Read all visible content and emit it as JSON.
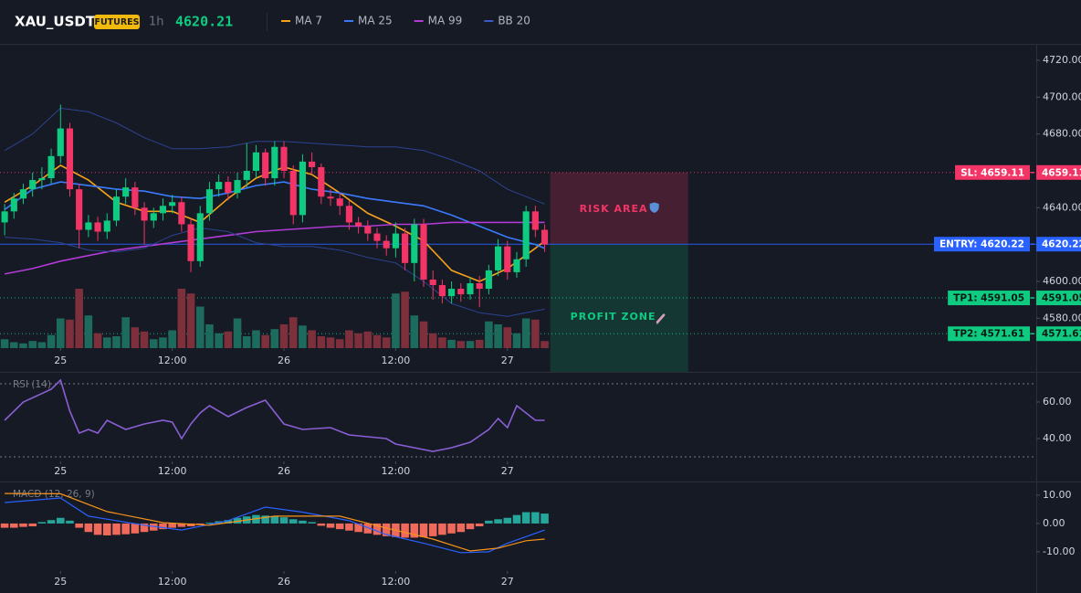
{
  "header": {
    "symbol": "XAU_USDT",
    "badge": "FUTURES",
    "interval": "1h",
    "price": 4620.21
  },
  "chart_data": [
    {
      "type": "candlestick",
      "open": [
        4632,
        4638,
        4645,
        4650,
        4655,
        4656,
        4668,
        4683,
        4650,
        4628,
        4632,
        4627,
        4633,
        4646,
        4651,
        4640,
        4633,
        4637,
        4641,
        4643,
        4631,
        4611,
        4637,
        4650,
        4654,
        4648,
        4655,
        4660,
        4670,
        4656,
        4673,
        4660,
        4636,
        4665,
        4662,
        4646,
        4645,
        4641,
        4632,
        4630,
        4626,
        4622,
        4618,
        4626,
        4610,
        4631,
        4601,
        4598,
        4592,
        4596,
        4593,
        4599,
        4596,
        4606,
        4619,
        4605,
        4612,
        4638,
        4628
      ],
      "high": [
        4642,
        4648,
        4653,
        4659,
        4662,
        4672,
        4696,
        4686,
        4653,
        4636,
        4635,
        4637,
        4650,
        4656,
        4654,
        4643,
        4640,
        4645,
        4647,
        4646,
        4634,
        4641,
        4654,
        4658,
        4657,
        4659,
        4675,
        4674,
        4672,
        4676,
        4676,
        4663,
        4669,
        4670,
        4664,
        4650,
        4648,
        4644,
        4635,
        4633,
        4629,
        4625,
        4632,
        4629,
        4634,
        4634,
        4606,
        4601,
        4600,
        4599,
        4602,
        4603,
        4609,
        4623,
        4622,
        4616,
        4641,
        4641,
        4631
      ],
      "low": [
        4625,
        4634,
        4642,
        4646,
        4650,
        4653,
        4664,
        4646,
        4618,
        4624,
        4622,
        4623,
        4630,
        4642,
        4636,
        4620,
        4629,
        4633,
        4637,
        4627,
        4605,
        4608,
        4633,
        4646,
        4644,
        4645,
        4651,
        4656,
        4652,
        4652,
        4656,
        4631,
        4632,
        4658,
        4642,
        4641,
        4636,
        4628,
        4626,
        4622,
        4618,
        4614,
        4613,
        4606,
        4600,
        4597,
        4590,
        4588,
        4588,
        4589,
        4590,
        4586,
        4593,
        4603,
        4601,
        4602,
        4608,
        4624,
        4616
      ],
      "close": [
        4638,
        4645,
        4650,
        4655,
        4656,
        4668,
        4683,
        4650,
        4628,
        4632,
        4627,
        4633,
        4646,
        4651,
        4640,
        4633,
        4637,
        4641,
        4643,
        4631,
        4611,
        4637,
        4650,
        4654,
        4648,
        4655,
        4660,
        4670,
        4656,
        4673,
        4660,
        4636,
        4665,
        4662,
        4646,
        4645,
        4641,
        4632,
        4630,
        4626,
        4622,
        4618,
        4626,
        4610,
        4631,
        4601,
        4598,
        4592,
        4596,
        4593,
        4599,
        4596,
        4606,
        4619,
        4605,
        4612,
        4638,
        4628,
        4620
      ],
      "volume": [
        15,
        10,
        8,
        12,
        10,
        22,
        50,
        48,
        100,
        55,
        25,
        18,
        20,
        52,
        35,
        28,
        15,
        18,
        30,
        100,
        92,
        70,
        40,
        25,
        28,
        50,
        20,
        30,
        22,
        32,
        40,
        52,
        38,
        30,
        20,
        18,
        15,
        30,
        25,
        28,
        22,
        18,
        92,
        95,
        55,
        45,
        25,
        18,
        14,
        12,
        12,
        14,
        45,
        40,
        35,
        25,
        50,
        48,
        12
      ],
      "up_color": "#0ecb81",
      "down_color": "#f23566",
      "volume_up_color": "#1d6b5d",
      "volume_down_color": "#7e2f3c",
      "series": [
        {
          "name": "MA 7",
          "color": "#f7a21b",
          "x": [
            0,
            3,
            6,
            9,
            12,
            15,
            18,
            21,
            24,
            27,
            30,
            33,
            36,
            39,
            42,
            45,
            48,
            51,
            54,
            57,
            58
          ],
          "values": [
            4643,
            4652,
            4663,
            4655,
            4643,
            4638,
            4638,
            4632,
            4645,
            4656,
            4662,
            4658,
            4648,
            4637,
            4630,
            4622,
            4606,
            4600,
            4607,
            4618,
            4622
          ]
        },
        {
          "name": "MA 25",
          "color": "#3a7bfd",
          "x": [
            0,
            3,
            6,
            9,
            12,
            15,
            18,
            21,
            24,
            27,
            30,
            33,
            36,
            39,
            42,
            45,
            48,
            51,
            54,
            57,
            58
          ],
          "values": [
            4639,
            4650,
            4654,
            4652,
            4650,
            4649,
            4646,
            4645,
            4648,
            4652,
            4654,
            4650,
            4648,
            4645,
            4643,
            4641,
            4636,
            4630,
            4624,
            4620,
            4618
          ]
        },
        {
          "name": "MA 99",
          "color": "#b23ad6",
          "x": [
            0,
            3,
            6,
            9,
            12,
            15,
            18,
            21,
            24,
            27,
            30,
            33,
            36,
            39,
            42,
            45,
            48,
            51,
            54,
            57,
            58
          ],
          "values": [
            4604,
            4607,
            4611,
            4614,
            4617,
            4619,
            4621,
            4623,
            4625,
            4627,
            4628,
            4629,
            4630,
            4630,
            4631,
            4631,
            4632,
            4632,
            4632,
            4632,
            4632
          ]
        },
        {
          "name": "BB 20",
          "color": "#2c4390",
          "x": [
            0,
            3,
            6,
            9,
            12,
            15,
            18,
            21,
            24,
            27,
            30,
            33,
            36,
            39,
            42,
            45,
            48,
            51,
            54,
            57,
            58
          ],
          "values": [
            4671,
            4680,
            4694,
            4692,
            4686,
            4678,
            4672,
            4672,
            4673,
            4676,
            4676,
            4675,
            4674,
            4673,
            4673,
            4671,
            4666,
            4660,
            4650,
            4644,
            4642
          ],
          "lower": [
            4624,
            4623,
            4621,
            4617,
            4616,
            4618,
            4625,
            4629,
            4627,
            4621,
            4619,
            4619,
            4617,
            4613,
            4610,
            4600,
            4588,
            4583,
            4581,
            4584,
            4585
          ]
        }
      ],
      "levels": [
        {
          "label": "SL: 4659.11",
          "value": 4659.11,
          "color": "#f23566",
          "style": "dotted"
        },
        {
          "label": "ENTRY: 4620.22",
          "value": 4620.22,
          "color": "#2962ff",
          "style": "solid"
        },
        {
          "label": "TP1: 4591.05",
          "value": 4591.05,
          "color": "#0ecb81",
          "style": "dotted"
        },
        {
          "label": "TP2: 4571.61",
          "value": 4571.61,
          "color": "#0ecb81",
          "style": "dotted"
        }
      ],
      "zones": [
        {
          "label": "RISK AREA",
          "color": "#f23566"
        },
        {
          "label": "PROFIT ZONE",
          "color": "#0ecb81"
        }
      ],
      "xlim": [
        -0.5,
        110.8
      ],
      "xticks": [
        {
          "value": 6,
          "label": "25"
        },
        {
          "value": 18,
          "label": "12:00"
        },
        {
          "value": 30,
          "label": "26"
        },
        {
          "value": 42,
          "label": "12:00"
        },
        {
          "value": 54,
          "label": "27"
        }
      ],
      "ylim": [
        4563.8,
        4728.9
      ],
      "yticks": [
        {
          "value": 4720,
          "label": "4720.00"
        },
        {
          "value": 4700,
          "label": "4700.00"
        },
        {
          "value": 4680,
          "label": "4680.00"
        },
        {
          "value": 4640,
          "label": "4640.00"
        },
        {
          "value": 4600,
          "label": "4600.00"
        },
        {
          "value": 4580,
          "label": "4580.00"
        }
      ]
    },
    {
      "type": "line",
      "title": "RSI (14)",
      "series": [
        {
          "color": "#8a5fd3",
          "x": [
            0,
            2,
            5,
            6,
            7,
            8,
            9,
            10,
            11,
            13,
            15,
            17,
            18,
            19,
            20,
            21,
            22,
            24,
            26,
            28,
            30,
            32,
            35,
            37,
            39,
            41,
            42,
            44,
            46,
            48,
            50,
            52,
            53,
            54,
            55,
            57,
            58
          ],
          "values": [
            50,
            60,
            67,
            72,
            55,
            43,
            45,
            43,
            50,
            45,
            48,
            50,
            49,
            40,
            48,
            54,
            58,
            52,
            57,
            61,
            48,
            45,
            46,
            42,
            41,
            40,
            37,
            35,
            33,
            35,
            38,
            45,
            51,
            46,
            58,
            50,
            50
          ]
        }
      ],
      "levels": [
        70,
        30
      ],
      "xlim": [
        -0.5,
        110.8
      ],
      "xticks": [
        {
          "value": 6,
          "label": "25"
        },
        {
          "value": 18,
          "label": "12:00"
        },
        {
          "value": 30,
          "label": "26"
        },
        {
          "value": 42,
          "label": "12:00"
        },
        {
          "value": 54,
          "label": "27"
        }
      ],
      "ylim": [
        27.5,
        76
      ],
      "yticks": [
        {
          "value": 60,
          "label": "60.00"
        },
        {
          "value": 40,
          "label": "40.00"
        }
      ]
    },
    {
      "type": "macd",
      "title": "MACD (12, 26, 9)",
      "histogram": [
        -1.5,
        -1.5,
        -1.2,
        -1,
        0.5,
        1.2,
        2,
        1,
        -1.5,
        -3,
        -4,
        -4.2,
        -4,
        -3.8,
        -3.5,
        -3,
        -2.5,
        -2,
        -1.5,
        -1.2,
        -1,
        -0.5,
        0.3,
        0.8,
        1.2,
        2,
        2.5,
        3,
        2.8,
        2.5,
        2.2,
        1.5,
        1,
        0.5,
        -0.8,
        -1.5,
        -2,
        -2.5,
        -3,
        -3.5,
        -4,
        -4.5,
        -4.8,
        -5,
        -5,
        -4.8,
        -4.5,
        -4,
        -3.5,
        -3,
        -2,
        -1,
        1,
        1.5,
        2,
        3,
        4,
        4,
        3.5
      ],
      "up_color": "#26a69a",
      "down_color": "#ef6a5a",
      "series": [
        {
          "color": "#2962ff",
          "x": [
            0,
            6,
            9,
            15,
            19,
            24,
            28,
            32,
            37,
            41,
            45,
            49,
            52,
            54,
            58
          ],
          "values": [
            7.4,
            9,
            2.6,
            -0.6,
            -2.3,
            1,
            5.8,
            4,
            1,
            -3.9,
            -7,
            -10.3,
            -10,
            -7,
            -2.3
          ]
        },
        {
          "color": "#f7931a",
          "x": [
            0,
            6,
            11,
            17,
            22,
            29,
            36,
            41,
            46,
            50,
            53,
            56,
            58
          ],
          "values": [
            10.6,
            10.5,
            4.2,
            0.3,
            -0.6,
            2.6,
            2.6,
            -1.6,
            -5.5,
            -9.7,
            -8.7,
            -6.1,
            -5.5
          ]
        }
      ],
      "xlim": [
        -0.5,
        110.8
      ],
      "xticks": [
        {
          "value": 6,
          "label": "25"
        },
        {
          "value": 18,
          "label": "12:00"
        },
        {
          "value": 30,
          "label": "26"
        },
        {
          "value": 42,
          "label": "12:00"
        },
        {
          "value": 54,
          "label": "27"
        }
      ],
      "ylim": [
        -16.8,
        14.5
      ],
      "yticks": [
        {
          "value": 10,
          "label": "10.00"
        },
        {
          "value": 0,
          "label": "0.00"
        },
        {
          "value": -10,
          "label": "-10.00"
        }
      ]
    }
  ]
}
